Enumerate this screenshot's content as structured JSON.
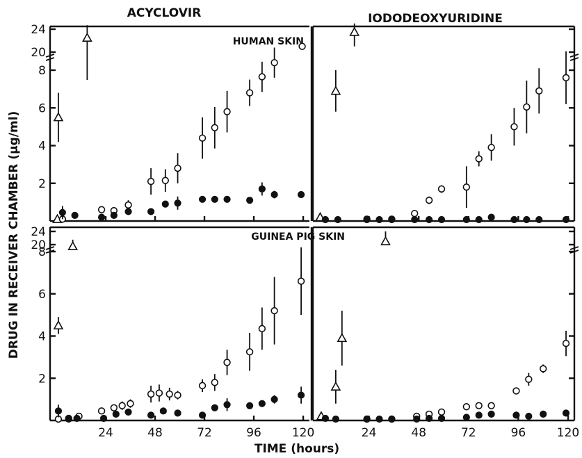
{
  "figure": {
    "y_axis_label": "DRUG IN RECEIVER CHAMBER (μg/ml)",
    "x_axis_label": "TIME (hours)",
    "column_titles": [
      "ACYCLOVIR",
      "IODODEOXYURIDINE"
    ],
    "row_labels": [
      "HUMAN SKIN",
      "GUINEA PIG SKIN"
    ]
  },
  "chart_data": [
    {
      "type": "scatter",
      "panel": "acyclovir-human",
      "title": "ACYCLOVIR",
      "subtitle": "HUMAN SKIN",
      "x_ticks": [
        24,
        48,
        72,
        96,
        120
      ],
      "y_ticks": [
        2,
        4,
        6,
        8
      ],
      "y_break_ticks": [
        20,
        24
      ],
      "xlim": [
        0,
        121
      ],
      "ylim": [
        0,
        8.4
      ],
      "series": [
        {
          "marker": "triangle",
          "points": [
            {
              "x": 1,
              "y": 5.5,
              "err": 1.3
            },
            {
              "x": 0.5,
              "y": 0.1,
              "err": 0
            }
          ],
          "break_points": [
            {
              "x": 15,
              "y": 22.5,
              "err_up": 2.2,
              "err_down": 4.0
            }
          ]
        },
        {
          "marker": "open-circle",
          "points": [
            {
              "x": 3,
              "y": 0.1,
              "err": 0
            },
            {
              "x": 22,
              "y": 0.6,
              "err": 0
            },
            {
              "x": 28,
              "y": 0.55,
              "err": 0
            },
            {
              "x": 35,
              "y": 0.85,
              "err": 0.25
            },
            {
              "x": 46,
              "y": 2.1,
              "err": 0.7
            },
            {
              "x": 53,
              "y": 2.15,
              "err": 0.6
            },
            {
              "x": 59,
              "y": 2.8,
              "err": 0.8
            },
            {
              "x": 71,
              "y": 4.4,
              "err": 1.1
            },
            {
              "x": 77,
              "y": 4.95,
              "err": 1.1
            },
            {
              "x": 83,
              "y": 5.8,
              "err": 1.1
            },
            {
              "x": 94,
              "y": 6.8,
              "err": 0.7
            },
            {
              "x": 100,
              "y": 7.65,
              "err": 0.8
            },
            {
              "x": 106,
              "y": 8.4,
              "err": 0.8
            }
          ],
          "break_points": [
            {
              "x": 119.5,
              "y": 21,
              "err_up": 0,
              "err_down": 0
            }
          ]
        },
        {
          "marker": "filled-circle",
          "points": [
            {
              "x": 3,
              "y": 0.45,
              "err": 0.35
            },
            {
              "x": 9,
              "y": 0.3,
              "err": 0
            },
            {
              "x": 22,
              "y": 0.2,
              "err": 0
            },
            {
              "x": 28,
              "y": 0.3,
              "err": 0
            },
            {
              "x": 35,
              "y": 0.5,
              "err": 0
            },
            {
              "x": 46,
              "y": 0.5,
              "err": 0
            },
            {
              "x": 53,
              "y": 0.9,
              "err": 0
            },
            {
              "x": 59,
              "y": 0.95,
              "err": 0.35
            },
            {
              "x": 71,
              "y": 1.15,
              "err": 0
            },
            {
              "x": 77,
              "y": 1.15,
              "err": 0
            },
            {
              "x": 83,
              "y": 1.15,
              "err": 0
            },
            {
              "x": 94,
              "y": 1.1,
              "err": 0
            },
            {
              "x": 100,
              "y": 1.7,
              "err": 0.35
            },
            {
              "x": 106,
              "y": 1.4,
              "err": 0.2
            },
            {
              "x": 119,
              "y": 1.4,
              "err": 0
            }
          ]
        }
      ]
    },
    {
      "type": "scatter",
      "panel": "idu-human",
      "title": "IODODEOXYURIDINE",
      "subtitle": "HUMAN SKIN",
      "x_ticks": [
        24,
        48,
        72,
        96,
        120
      ],
      "y_ticks": [
        2,
        4,
        6,
        8
      ],
      "y_break_ticks": [
        20,
        24
      ],
      "xlim": [
        0,
        121
      ],
      "ylim": [
        0,
        8.4
      ],
      "series": [
        {
          "marker": "triangle",
          "points": [
            {
              "x": 0.5,
              "y": 0.2,
              "err": 0
            },
            {
              "x": 8,
              "y": 6.9,
              "err": 1.1
            }
          ],
          "break_points": [
            {
              "x": 17,
              "y": 23.5,
              "err_up": 1.5,
              "err_down": 2.5
            }
          ]
        },
        {
          "marker": "open-circle",
          "points": [
            {
              "x": 23,
              "y": 0.1,
              "err": 0
            },
            {
              "x": 35,
              "y": 0.1,
              "err": 0
            },
            {
              "x": 46,
              "y": 0.4,
              "err": 0
            },
            {
              "x": 53,
              "y": 1.1,
              "err": 0.2
            },
            {
              "x": 59,
              "y": 1.7,
              "err": 0.2
            },
            {
              "x": 71,
              "y": 1.8,
              "err": 1.1
            },
            {
              "x": 77,
              "y": 3.3,
              "err": 0.4
            },
            {
              "x": 83,
              "y": 3.9,
              "err": 0.7
            },
            {
              "x": 94,
              "y": 5.0,
              "err": 1.0
            },
            {
              "x": 100,
              "y": 6.05,
              "err": 1.4
            },
            {
              "x": 106,
              "y": 6.9,
              "err": 1.2
            },
            {
              "x": 119,
              "y": 7.6,
              "err": 1.4
            }
          ]
        },
        {
          "marker": "filled-circle",
          "points": [
            {
              "x": 3,
              "y": 0,
              "err": 0
            },
            {
              "x": 9,
              "y": 0,
              "err": 0
            },
            {
              "x": 23,
              "y": 0,
              "err": 0
            },
            {
              "x": 29,
              "y": 0.05,
              "err": 0
            },
            {
              "x": 35,
              "y": 0.05,
              "err": 0
            },
            {
              "x": 46,
              "y": 0.05,
              "err": 0
            },
            {
              "x": 53,
              "y": 0,
              "err": 0
            },
            {
              "x": 59,
              "y": 0.05,
              "err": 0
            },
            {
              "x": 71,
              "y": 0.05,
              "err": 0
            },
            {
              "x": 77,
              "y": 0.05,
              "err": 0
            },
            {
              "x": 83,
              "y": 0.2,
              "err": 0
            },
            {
              "x": 94,
              "y": 0.05,
              "err": 0
            },
            {
              "x": 100,
              "y": 0.05,
              "err": 0
            },
            {
              "x": 106,
              "y": 0.05,
              "err": 0
            },
            {
              "x": 119,
              "y": 0.05,
              "err": 0
            }
          ]
        }
      ]
    },
    {
      "type": "scatter",
      "panel": "acyclovir-guinea",
      "title": "ACYCLOVIR",
      "subtitle": "GUINEA PIG SKIN",
      "x_ticks": [
        24,
        48,
        72,
        96,
        120
      ],
      "y_ticks": [
        2,
        4,
        6,
        8
      ],
      "y_break_ticks": [
        20,
        24
      ],
      "xlim": [
        0,
        121
      ],
      "ylim": [
        0,
        8.4
      ],
      "series": [
        {
          "marker": "triangle",
          "points": [
            {
              "x": 1,
              "y": 4.5,
              "err": 0.4
            }
          ],
          "break_points": [
            {
              "x": 8,
              "y": 19.5,
              "err_up": 2.0,
              "err_down": 0
            }
          ]
        },
        {
          "marker": "open-circle",
          "points": [
            {
              "x": 1,
              "y": 0,
              "err": 0
            },
            {
              "x": 6,
              "y": 0.1,
              "err": 0
            },
            {
              "x": 11,
              "y": 0.2,
              "err": 0
            },
            {
              "x": 22,
              "y": 0.45,
              "err": 0
            },
            {
              "x": 28,
              "y": 0.6,
              "err": 0
            },
            {
              "x": 32,
              "y": 0.7,
              "err": 0.2
            },
            {
              "x": 36,
              "y": 0.8,
              "err": 0.2
            },
            {
              "x": 46,
              "y": 1.25,
              "err": 0.4
            },
            {
              "x": 50,
              "y": 1.3,
              "err": 0.4
            },
            {
              "x": 55,
              "y": 1.25,
              "err": 0.3
            },
            {
              "x": 59,
              "y": 1.2,
              "err": 0.2
            },
            {
              "x": 71,
              "y": 1.65,
              "err": 0.3
            },
            {
              "x": 77,
              "y": 1.8,
              "err": 0.4
            },
            {
              "x": 83,
              "y": 2.75,
              "err": 0.6
            },
            {
              "x": 94,
              "y": 3.25,
              "err": 0.9
            },
            {
              "x": 100,
              "y": 4.35,
              "err": 1.0
            },
            {
              "x": 106,
              "y": 5.2,
              "err": 1.6
            },
            {
              "x": 119,
              "y": 6.6,
              "err": 1.6
            }
          ]
        },
        {
          "marker": "filled-circle",
          "points": [
            {
              "x": 1,
              "y": 0.45,
              "err": 0.3
            },
            {
              "x": 6,
              "y": 0.05,
              "err": 0
            },
            {
              "x": 10,
              "y": 0.1,
              "err": 0
            },
            {
              "x": 23,
              "y": 0.1,
              "err": 0
            },
            {
              "x": 29,
              "y": 0.3,
              "err": 0
            },
            {
              "x": 35,
              "y": 0.4,
              "err": 0
            },
            {
              "x": 46,
              "y": 0.25,
              "err": 0
            },
            {
              "x": 52,
              "y": 0.45,
              "err": 0
            },
            {
              "x": 59,
              "y": 0.35,
              "err": 0
            },
            {
              "x": 71,
              "y": 0.25,
              "err": 0
            },
            {
              "x": 77,
              "y": 0.6,
              "err": 0
            },
            {
              "x": 83,
              "y": 0.75,
              "err": 0.3
            },
            {
              "x": 94,
              "y": 0.7,
              "err": 0
            },
            {
              "x": 100,
              "y": 0.8,
              "err": 0
            },
            {
              "x": 106,
              "y": 1.0,
              "err": 0.2
            },
            {
              "x": 119,
              "y": 1.2,
              "err": 0.4
            }
          ]
        }
      ]
    },
    {
      "type": "scatter",
      "panel": "idu-guinea",
      "title": "IODODEOXYURIDINE",
      "subtitle": "GUINEA PIG SKIN",
      "x_ticks": [
        24,
        48,
        72,
        96,
        120
      ],
      "y_ticks": [
        2,
        4,
        6,
        8
      ],
      "y_break_ticks": [
        20,
        24
      ],
      "xlim": [
        0,
        121
      ],
      "ylim": [
        0,
        8.4
      ],
      "series": [
        {
          "marker": "triangle",
          "points": [
            {
              "x": 1,
              "y": 0.2,
              "err": 0
            },
            {
              "x": 8,
              "y": 1.6,
              "err": 0.8
            },
            {
              "x": 11,
              "y": 3.9,
              "err": 1.3
            }
          ],
          "break_points": [
            {
              "x": 32,
              "y": 21,
              "err_up": 3.0,
              "err_down": 0
            }
          ]
        },
        {
          "marker": "open-circle",
          "points": [
            {
              "x": 23,
              "y": 0.05,
              "err": 0
            },
            {
              "x": 35,
              "y": 0.05,
              "err": 0
            },
            {
              "x": 47,
              "y": 0.2,
              "err": 0
            },
            {
              "x": 53,
              "y": 0.3,
              "err": 0
            },
            {
              "x": 59,
              "y": 0.4,
              "err": 0
            },
            {
              "x": 71,
              "y": 0.65,
              "err": 0
            },
            {
              "x": 77,
              "y": 0.7,
              "err": 0
            },
            {
              "x": 83,
              "y": 0.7,
              "err": 0
            },
            {
              "x": 95,
              "y": 1.4,
              "err": 0
            },
            {
              "x": 101,
              "y": 1.95,
              "err": 0.3
            },
            {
              "x": 108,
              "y": 2.45,
              "err": 0.2
            },
            {
              "x": 119,
              "y": 3.65,
              "err": 0.6
            }
          ]
        },
        {
          "marker": "filled-circle",
          "points": [
            {
              "x": 3,
              "y": 0.1,
              "err": 0
            },
            {
              "x": 8,
              "y": 0.05,
              "err": 0
            },
            {
              "x": 23,
              "y": 0,
              "err": 0
            },
            {
              "x": 29,
              "y": 0.05,
              "err": 0
            },
            {
              "x": 35,
              "y": 0.05,
              "err": 0
            },
            {
              "x": 47,
              "y": 0.05,
              "err": 0
            },
            {
              "x": 53,
              "y": 0.1,
              "err": 0
            },
            {
              "x": 59,
              "y": 0.1,
              "err": 0
            },
            {
              "x": 71,
              "y": 0.15,
              "err": 0
            },
            {
              "x": 77,
              "y": 0.25,
              "err": 0
            },
            {
              "x": 83,
              "y": 0.3,
              "err": 0
            },
            {
              "x": 95,
              "y": 0.25,
              "err": 0
            },
            {
              "x": 101,
              "y": 0.2,
              "err": 0
            },
            {
              "x": 108,
              "y": 0.3,
              "err": 0
            },
            {
              "x": 119,
              "y": 0.35,
              "err": 0
            }
          ]
        }
      ]
    }
  ]
}
